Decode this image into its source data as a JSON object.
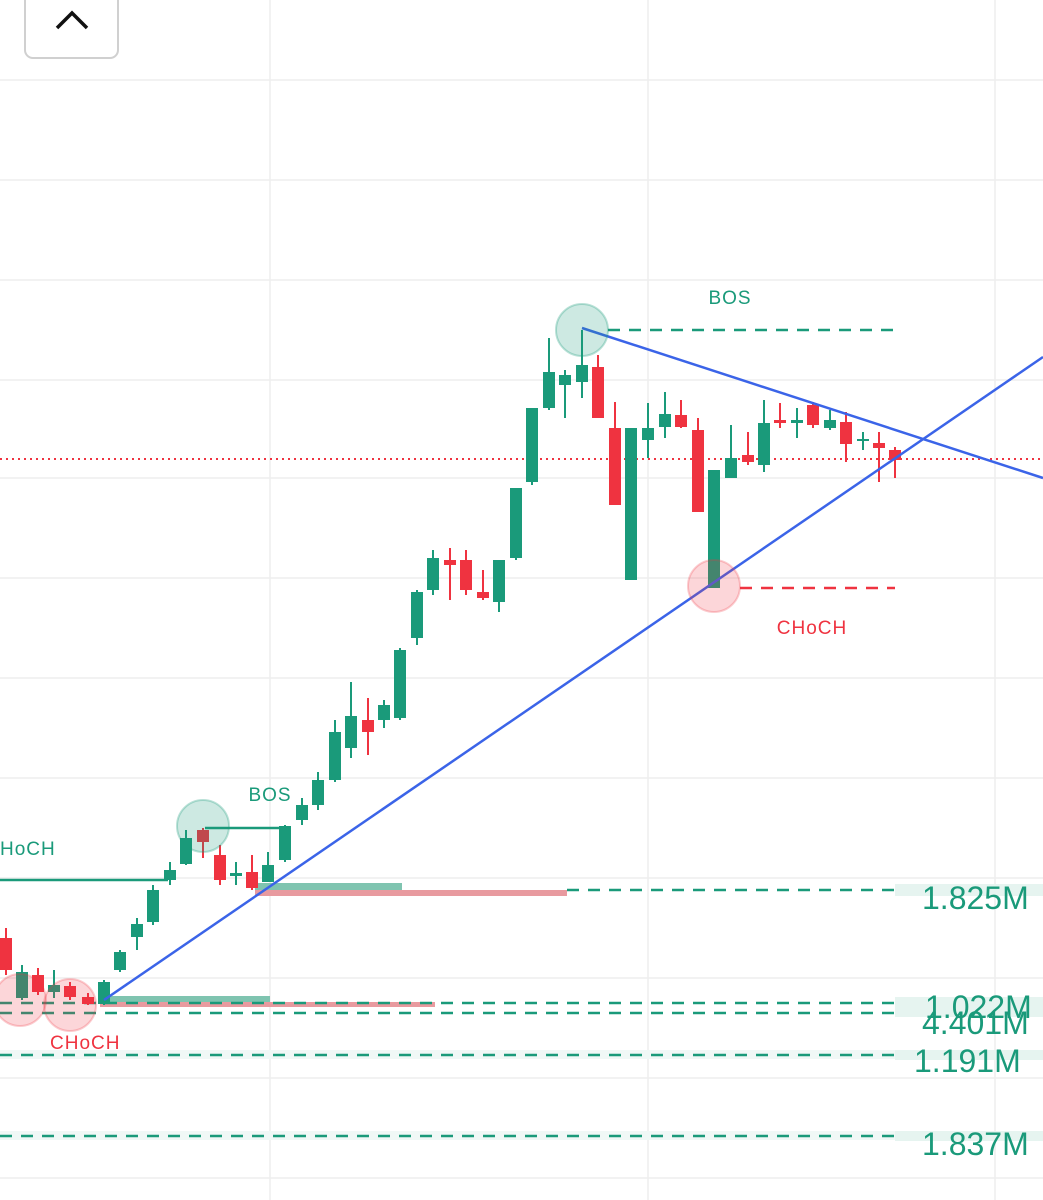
{
  "annotations": {
    "bos_upper": "BOS",
    "choch_upper": "CHoCH",
    "bos_lower": "BOS",
    "choch_left": "HoCH",
    "choch_lower": "CHoCH"
  },
  "price_labels": [
    "1.825M",
    "1.022M",
    "4.401M",
    "1.191M",
    "1.837M"
  ]
}
